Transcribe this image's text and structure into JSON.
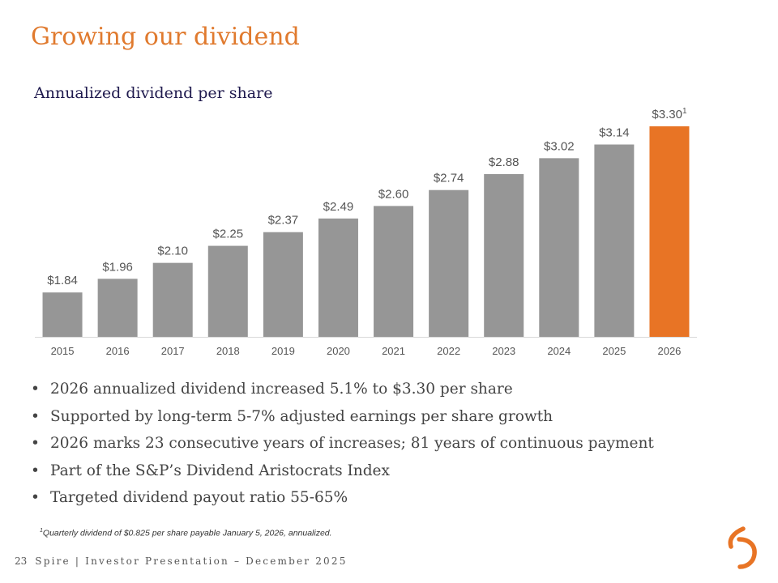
{
  "slide": {
    "title": "Growing our dividend",
    "subtitle": "Annualized dividend per share"
  },
  "chart_data": {
    "type": "bar",
    "title": "Annualized dividend per share",
    "categories": [
      "2015",
      "2016",
      "2017",
      "2018",
      "2019",
      "2020",
      "2021",
      "2022",
      "2023",
      "2024",
      "2025",
      "2026"
    ],
    "values": [
      1.84,
      1.96,
      2.1,
      2.25,
      2.37,
      2.49,
      2.6,
      2.74,
      2.88,
      3.02,
      3.14,
      3.3
    ],
    "labels": [
      "$1.84",
      "$1.96",
      "$2.10",
      "$2.25",
      "$2.37",
      "$2.49",
      "$2.60",
      "$2.74",
      "$2.88",
      "$3.02",
      "$3.14",
      "$3.30"
    ],
    "highlight_index": 11,
    "highlight_superscript": "1",
    "ylim": [
      1.45,
      3.3
    ],
    "xlabel": "",
    "ylabel": "",
    "grid": false,
    "colors": {
      "bar": "#969696",
      "highlight": "#e87425",
      "label": "#555555"
    }
  },
  "bullets": [
    "2026 annualized dividend increased 5.1% to $3.30 per share",
    "Supported by long-term 5-7% adjusted earnings per share growth",
    "2026 marks 23 consecutive years of increases; 81 years of continuous payment",
    "Part of the S&P’s Dividend Aristocrats Index",
    "Targeted dividend payout ratio 55-65%"
  ],
  "footnote": {
    "marker": "1",
    "text": "Quarterly dividend of $0.825 per share payable January 5, 2026, annualized."
  },
  "footer": {
    "page_number": "23",
    "text": "Spire | Investor Presentation – December 2025"
  },
  "logo": {
    "icon": "spire-logo-icon",
    "color": "#e87425"
  }
}
